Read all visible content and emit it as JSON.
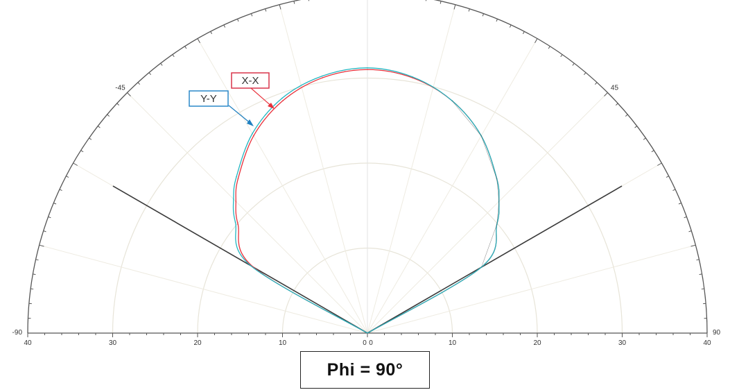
{
  "chart_data": {
    "type": "polar-line",
    "angle_range_deg": [
      -90,
      90
    ],
    "angle_tick_labels": [
      "-90",
      "-45",
      "0",
      "45",
      "90"
    ],
    "radial_range": [
      0,
      40
    ],
    "radial_tick_labels_left": [
      "40",
      "30",
      "20",
      "10",
      "0"
    ],
    "radial_tick_labels_right": [
      "0",
      "10",
      "20",
      "30",
      "40"
    ],
    "grid": true,
    "reference_lines_deg": [
      -60,
      60
    ],
    "series": [
      {
        "name": "X-X",
        "color": "#e8303a",
        "r_max": 31.0,
        "points": [
          {
            "angle": -60,
            "r": 15.5
          },
          {
            "angle": -50,
            "r": 19.9
          },
          {
            "angle": -45,
            "r": 21.9
          },
          {
            "angle": -40,
            "r": 23.7
          },
          {
            "angle": -30,
            "r": 26.8
          },
          {
            "angle": -20,
            "r": 29.1
          },
          {
            "angle": -10,
            "r": 30.5
          },
          {
            "angle": 0,
            "r": 31.0
          },
          {
            "angle": 10,
            "r": 30.5
          },
          {
            "angle": 20,
            "r": 29.1
          },
          {
            "angle": 30,
            "r": 26.8
          },
          {
            "angle": 40,
            "r": 23.7
          },
          {
            "angle": 45,
            "r": 21.9
          },
          {
            "angle": 50,
            "r": 19.9
          },
          {
            "angle": 60,
            "r": 15.5
          }
        ]
      },
      {
        "name": "Y-Y",
        "color": "#22b5c0",
        "r_max": 31.2,
        "points": [
          {
            "angle": -60,
            "r": 15.9
          },
          {
            "angle": -50,
            "r": 20.3
          },
          {
            "angle": -45,
            "r": 22.3
          },
          {
            "angle": -40,
            "r": 24.0
          },
          {
            "angle": -30,
            "r": 27.1
          },
          {
            "angle": -20,
            "r": 29.4
          },
          {
            "angle": -10,
            "r": 30.7
          },
          {
            "angle": 0,
            "r": 31.2
          },
          {
            "angle": 10,
            "r": 30.6
          },
          {
            "angle": 20,
            "r": 29.1
          },
          {
            "angle": 30,
            "r": 26.8
          },
          {
            "angle": 40,
            "r": 23.7
          },
          {
            "angle": 45,
            "r": 21.9
          },
          {
            "angle": 50,
            "r": 19.9
          },
          {
            "angle": 60,
            "r": 15.5
          }
        ]
      }
    ],
    "legend_labels": {
      "xx": "X-X",
      "yy": "Y-Y"
    },
    "caption": "Phi = 90°"
  }
}
